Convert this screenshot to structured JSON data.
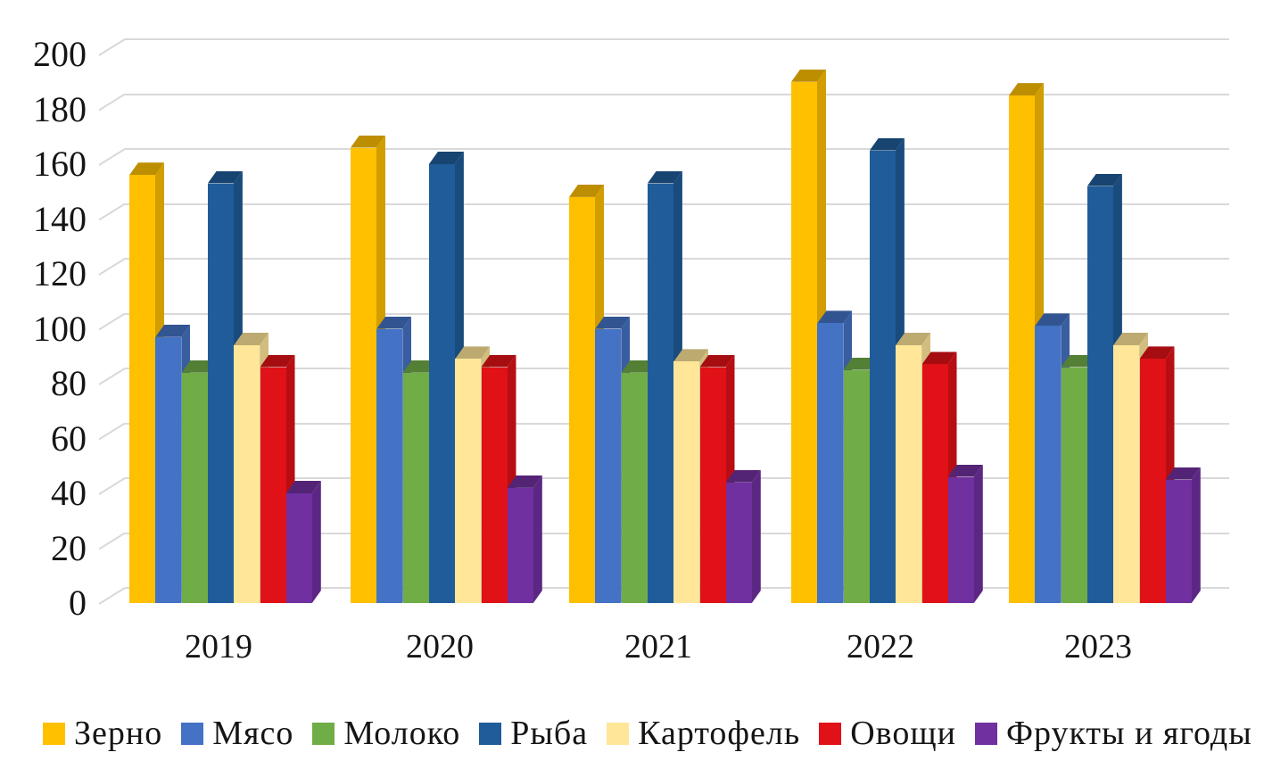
{
  "chart_data": {
    "type": "bar",
    "style": "3d-column",
    "title": "",
    "categories": [
      "2019",
      "2020",
      "2021",
      "2022",
      "2023"
    ],
    "series": [
      {
        "name": "Зерно",
        "color": "#FFC000",
        "values": [
          156,
          166,
          148,
          190,
          185
        ]
      },
      {
        "name": "Мясо",
        "color": "#4472C4",
        "values": [
          97,
          100,
          100,
          102,
          101
        ]
      },
      {
        "name": "Молоко",
        "color": "#70AD47",
        "values": [
          84,
          84,
          84,
          85,
          86
        ]
      },
      {
        "name": "Рыба",
        "color": "#1F5C99",
        "values": [
          153,
          160,
          153,
          165,
          152
        ]
      },
      {
        "name": "Картофель",
        "color": "#FFE699",
        "values": [
          94,
          89,
          88,
          94,
          94
        ]
      },
      {
        "name": "Овощи",
        "color": "#E01117",
        "values": [
          86,
          86,
          86,
          87,
          89
        ]
      },
      {
        "name": "Фрукты и ягоды",
        "color": "#7030A0",
        "values": [
          40,
          42,
          44,
          46,
          45
        ]
      }
    ],
    "y_axis": {
      "min": 0,
      "max": 200,
      "step": 20,
      "ticks": [
        "0",
        "20",
        "40",
        "60",
        "80",
        "100",
        "120",
        "140",
        "160",
        "180",
        "200"
      ]
    },
    "x_axis": {
      "label": ""
    },
    "grid": true,
    "gridline_color": "#D9D9D9",
    "background_color": "#FFFFFF",
    "text_color": "#151515",
    "legend_position": "bottom"
  }
}
